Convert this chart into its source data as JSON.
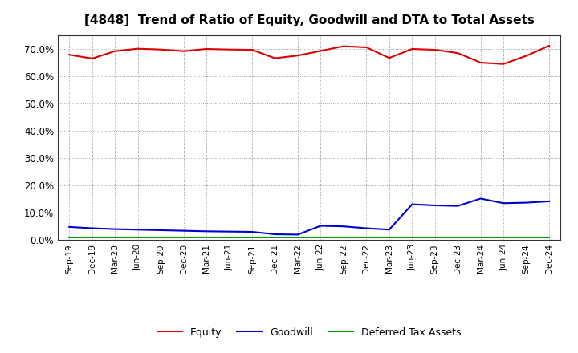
{
  "title": "[4848]  Trend of Ratio of Equity, Goodwill and DTA to Total Assets",
  "labels": [
    "Sep-19",
    "Dec-19",
    "Mar-20",
    "Jun-20",
    "Sep-20",
    "Dec-20",
    "Mar-21",
    "Jun-21",
    "Sep-21",
    "Dec-21",
    "Mar-22",
    "Jun-22",
    "Sep-22",
    "Dec-22",
    "Mar-23",
    "Jun-23",
    "Sep-23",
    "Dec-23",
    "Mar-24",
    "Jun-24",
    "Sep-24",
    "Dec-24"
  ],
  "equity": [
    0.679,
    0.665,
    0.692,
    0.701,
    0.698,
    0.692,
    0.7,
    0.698,
    0.697,
    0.666,
    0.676,
    0.693,
    0.71,
    0.706,
    0.667,
    0.7,
    0.697,
    0.685,
    0.65,
    0.645,
    0.675,
    0.712
  ],
  "goodwill": [
    0.048,
    0.043,
    0.04,
    0.038,
    0.036,
    0.034,
    0.032,
    0.031,
    0.03,
    0.021,
    0.02,
    0.052,
    0.05,
    0.043,
    0.038,
    0.131,
    0.127,
    0.125,
    0.152,
    0.135,
    0.137,
    0.142
  ],
  "dta": [
    0.01,
    0.01,
    0.01,
    0.01,
    0.01,
    0.01,
    0.01,
    0.01,
    0.01,
    0.01,
    0.01,
    0.01,
    0.01,
    0.01,
    0.01,
    0.01,
    0.01,
    0.01,
    0.01,
    0.01,
    0.01,
    0.01
  ],
  "equity_color": "#dd0000",
  "goodwill_color": "#0000cc",
  "dta_color": "#009900",
  "ylim": [
    0.0,
    0.75
  ],
  "yticks": [
    0.0,
    0.1,
    0.2,
    0.3,
    0.4,
    0.5,
    0.6,
    0.7
  ],
  "background_color": "#ffffff",
  "grid_color": "#999999"
}
